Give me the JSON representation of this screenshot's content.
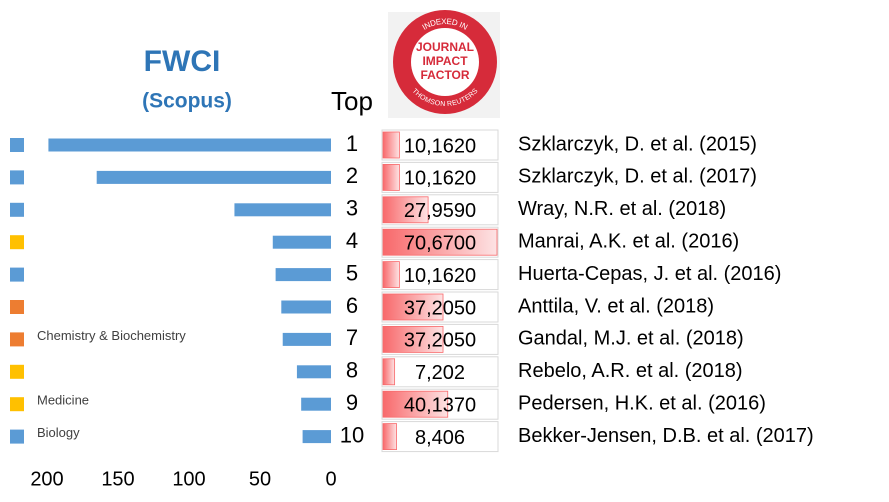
{
  "chart_data": {
    "type": "bar",
    "title": "FWCI",
    "subtitle": "(Scopus)",
    "rank_header": "Top",
    "categories": [
      "1",
      "2",
      "3",
      "4",
      "5",
      "6",
      "7",
      "8",
      "9",
      "10"
    ],
    "values": [
      199,
      165,
      68,
      41,
      39,
      35,
      34,
      24,
      21,
      20
    ],
    "color": "#5b9bd5",
    "xlim": [
      0,
      210
    ],
    "xticks": [
      0,
      50,
      100,
      150,
      200
    ],
    "reversed": true,
    "row_colors": [
      "#5b9bd5",
      "#5b9bd5",
      "#5b9bd5",
      "#ffc000",
      "#5b9bd5",
      "#ed7d31",
      "#ed7d31",
      "#ffc000",
      "#ffc000",
      "#5b9bd5"
    ],
    "legend": [
      {
        "name": "Chemistry & Biochemistry",
        "color": "#ed7d31"
      },
      {
        "name": "Medicine",
        "color": "#ffc000"
      },
      {
        "name": "Biology",
        "color": "#5b9bd5"
      }
    ],
    "impact_factor": {
      "values": [
        10.162,
        10.162,
        27.959,
        70.67,
        10.162,
        37.205,
        37.205,
        7.202,
        40.137,
        8.406
      ],
      "value_labels": [
        "10,1620",
        "10,1620",
        "27,9590",
        "70,6700",
        "10,1620",
        "37,2050",
        "37,2050",
        "7,202",
        "40,1370",
        "8,406"
      ],
      "color": "#f8696b"
    },
    "references": [
      "Szklarczyk, D. et al. (2015)",
      "Szklarczyk, D. et al. (2017)",
      "Wray, N.R. et al. (2018)",
      "Manrai, A.K. et al. (2016)",
      "Huerta-Cepas, J. et al. (2016)",
      "Anttila, V. et al. (2018)",
      "Gandal, M.J. et al. (2018)",
      "Rebelo, A.R. et al. (2018)",
      "Pedersen, H.K. et al. (2016)",
      "Bekker-Jensen, D.B. et al. (2017)"
    ],
    "logo": {
      "top": "INDEXED IN",
      "lines": [
        "JOURNAL",
        "IMPACT",
        "FACTOR"
      ],
      "bottom": "THOMSON REUTERS"
    }
  }
}
